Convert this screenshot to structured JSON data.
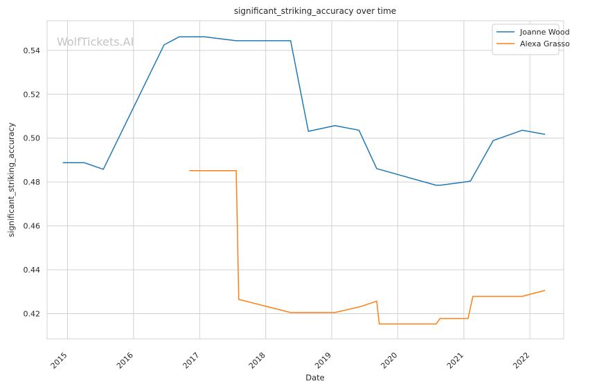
{
  "chart_data": {
    "type": "line",
    "title": "significant_striking_accuracy over time",
    "xlabel": "Date",
    "ylabel": "significant_striking_accuracy",
    "watermark": "WolfTickets.AI",
    "x_ticks": [
      "2015",
      "2016",
      "2017",
      "2018",
      "2019",
      "2020",
      "2021",
      "2022"
    ],
    "y_ticks": [
      "0.42",
      "0.44",
      "0.46",
      "0.48",
      "0.50",
      "0.52",
      "0.54"
    ],
    "xlim": [
      "2014-09-10",
      "2022-07-07"
    ],
    "ylim": [
      0.4085,
      0.5535
    ],
    "grid": true,
    "legend_position": "top-right",
    "colors": {
      "Joanne Wood": "#1f77b4",
      "Alexa Grasso": "#ff7f0e"
    },
    "series": [
      {
        "name": "Joanne Wood",
        "x": [
          "2014-12-06",
          "2015-04-04",
          "2015-07-18",
          "2016-06-18",
          "2016-09-10",
          "2017-01-28",
          "2017-07-22",
          "2018-05-19",
          "2018-08-25",
          "2019-01-19",
          "2019-06-01",
          "2019-09-07",
          "2020-08-01",
          "2020-08-22",
          "2021-01-24",
          "2021-02-06",
          "2021-06-12",
          "2021-11-20",
          "2022-03-26"
        ],
        "values": [
          0.4888,
          0.4888,
          0.4858,
          0.5425,
          0.5462,
          0.5462,
          0.5444,
          0.5444,
          0.5031,
          0.5057,
          0.5036,
          0.4861,
          0.4785,
          0.4785,
          0.4802,
          0.4804,
          0.4989,
          0.5036,
          0.5017
        ]
      },
      {
        "name": "Alexa Grasso",
        "x": [
          "2016-11-05",
          "2017-07-22",
          "2017-08-05",
          "2018-05-19",
          "2019-01-19",
          "2019-06-08",
          "2019-09-07",
          "2019-09-21",
          "2020-08-01",
          "2020-08-22",
          "2021-01-24",
          "2021-02-20",
          "2021-11-20",
          "2022-03-26"
        ],
        "values": [
          0.4852,
          0.4852,
          0.4265,
          0.4205,
          0.4205,
          0.4232,
          0.4257,
          0.4153,
          0.4153,
          0.4178,
          0.4178,
          0.4279,
          0.4279,
          0.4306
        ]
      }
    ]
  }
}
